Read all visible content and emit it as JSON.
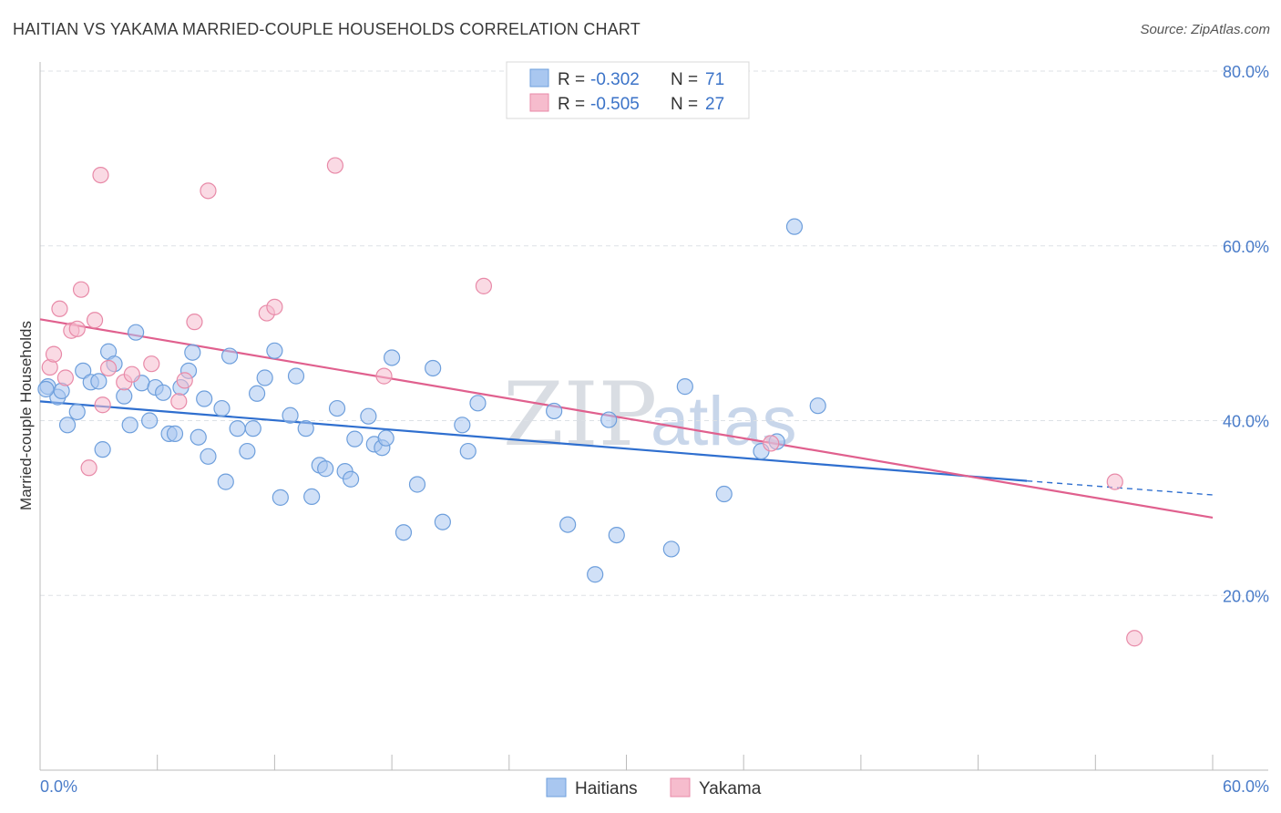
{
  "title": "HAITIAN VS YAKAMA MARRIED-COUPLE HOUSEHOLDS CORRELATION CHART",
  "source": "Source: ZipAtlas.com",
  "watermark": {
    "zip": "ZIP",
    "atlas": "atlas"
  },
  "colors": {
    "haitians_fill": "#a9c7f0",
    "haitians_stroke": "#6e9fdc",
    "haitians_line": "#2f6fcf",
    "yakama_fill": "#f6bccd",
    "yakama_stroke": "#e88aa8",
    "yakama_line": "#e0608e",
    "tick_label": "#4a7cc9",
    "grid": "#dde1e6"
  },
  "legend": {
    "r_label": "R =",
    "n_label": "N =",
    "rows": [
      {
        "r": "-0.302",
        "n": "71"
      },
      {
        "r": "-0.505",
        "n": "27"
      }
    ]
  },
  "chart_data": {
    "type": "scatter",
    "title": "HAITIAN VS YAKAMA MARRIED-COUPLE HOUSEHOLDS CORRELATION CHART",
    "xlabel": "",
    "ylabel": "Married-couple Households",
    "xlim": [
      0,
      60
    ],
    "ylim": [
      0,
      80
    ],
    "x_tick_labels": [
      "0.0%",
      "60.0%"
    ],
    "y_ticks": [
      20,
      40,
      60,
      80
    ],
    "y_tick_labels": [
      "20.0%",
      "40.0%",
      "60.0%",
      "80.0%"
    ],
    "legend_position": "top-center",
    "series": [
      {
        "name": "Haitians",
        "r": -0.302,
        "n": 71,
        "trend": {
          "x0": 0,
          "y0": 42.2,
          "x1": 50.5,
          "y1": 33.1,
          "dashed_to_x": 60,
          "dashed_to_y": 31.5
        },
        "points": [
          [
            0.4,
            43.9
          ],
          [
            0.9,
            42.7
          ],
          [
            1.1,
            43.4
          ],
          [
            1.4,
            39.5
          ],
          [
            1.9,
            41.0
          ],
          [
            2.2,
            45.7
          ],
          [
            2.6,
            44.4
          ],
          [
            3.0,
            44.5
          ],
          [
            3.2,
            36.7
          ],
          [
            3.5,
            47.9
          ],
          [
            3.8,
            46.5
          ],
          [
            4.3,
            42.8
          ],
          [
            4.6,
            39.5
          ],
          [
            4.9,
            50.1
          ],
          [
            5.2,
            44.3
          ],
          [
            5.6,
            40.0
          ],
          [
            5.9,
            43.8
          ],
          [
            6.3,
            43.2
          ],
          [
            6.6,
            38.5
          ],
          [
            6.9,
            38.5
          ],
          [
            7.2,
            43.8
          ],
          [
            7.6,
            45.7
          ],
          [
            7.8,
            47.8
          ],
          [
            8.1,
            38.1
          ],
          [
            8.4,
            42.5
          ],
          [
            8.6,
            35.9
          ],
          [
            9.3,
            41.4
          ],
          [
            9.5,
            33.0
          ],
          [
            9.7,
            47.4
          ],
          [
            10.1,
            39.1
          ],
          [
            10.6,
            36.5
          ],
          [
            10.9,
            39.1
          ],
          [
            11.1,
            43.1
          ],
          [
            11.5,
            44.9
          ],
          [
            12.0,
            48.0
          ],
          [
            12.3,
            31.2
          ],
          [
            12.8,
            40.6
          ],
          [
            13.1,
            45.1
          ],
          [
            13.6,
            39.1
          ],
          [
            13.9,
            31.3
          ],
          [
            14.3,
            34.9
          ],
          [
            14.6,
            34.5
          ],
          [
            15.2,
            41.4
          ],
          [
            15.6,
            34.2
          ],
          [
            15.9,
            33.3
          ],
          [
            16.1,
            37.9
          ],
          [
            16.8,
            40.5
          ],
          [
            17.1,
            37.3
          ],
          [
            17.5,
            36.9
          ],
          [
            17.7,
            38.0
          ],
          [
            18.0,
            47.2
          ],
          [
            18.6,
            27.2
          ],
          [
            19.3,
            32.7
          ],
          [
            20.1,
            46.0
          ],
          [
            20.6,
            28.4
          ],
          [
            21.6,
            39.5
          ],
          [
            21.9,
            36.5
          ],
          [
            22.4,
            42.0
          ],
          [
            26.3,
            41.1
          ],
          [
            27.0,
            28.1
          ],
          [
            28.4,
            22.4
          ],
          [
            29.1,
            40.1
          ],
          [
            29.5,
            26.9
          ],
          [
            32.3,
            25.3
          ],
          [
            33.0,
            43.9
          ],
          [
            35.0,
            31.6
          ],
          [
            36.9,
            36.5
          ],
          [
            37.7,
            37.6
          ],
          [
            38.6,
            62.2
          ],
          [
            39.8,
            41.7
          ],
          [
            0.3,
            43.6
          ]
        ]
      },
      {
        "name": "Yakama",
        "r": -0.505,
        "n": 27,
        "trend": {
          "x0": 0,
          "y0": 51.6,
          "x1": 60,
          "y1": 28.9
        },
        "points": [
          [
            0.5,
            46.1
          ],
          [
            0.7,
            47.6
          ],
          [
            1.0,
            52.8
          ],
          [
            1.3,
            44.9
          ],
          [
            1.6,
            50.3
          ],
          [
            1.9,
            50.5
          ],
          [
            2.1,
            55.0
          ],
          [
            2.5,
            34.6
          ],
          [
            2.8,
            51.5
          ],
          [
            3.1,
            68.1
          ],
          [
            3.2,
            41.8
          ],
          [
            3.5,
            46.0
          ],
          [
            4.3,
            44.4
          ],
          [
            4.7,
            45.3
          ],
          [
            5.7,
            46.5
          ],
          [
            7.1,
            42.2
          ],
          [
            7.4,
            44.6
          ],
          [
            7.9,
            51.3
          ],
          [
            8.6,
            66.3
          ],
          [
            11.6,
            52.3
          ],
          [
            12.0,
            53.0
          ],
          [
            15.1,
            69.2
          ],
          [
            17.6,
            45.1
          ],
          [
            22.7,
            55.4
          ],
          [
            37.4,
            37.4
          ],
          [
            55.0,
            33.0
          ],
          [
            56.0,
            15.1
          ]
        ]
      }
    ]
  }
}
